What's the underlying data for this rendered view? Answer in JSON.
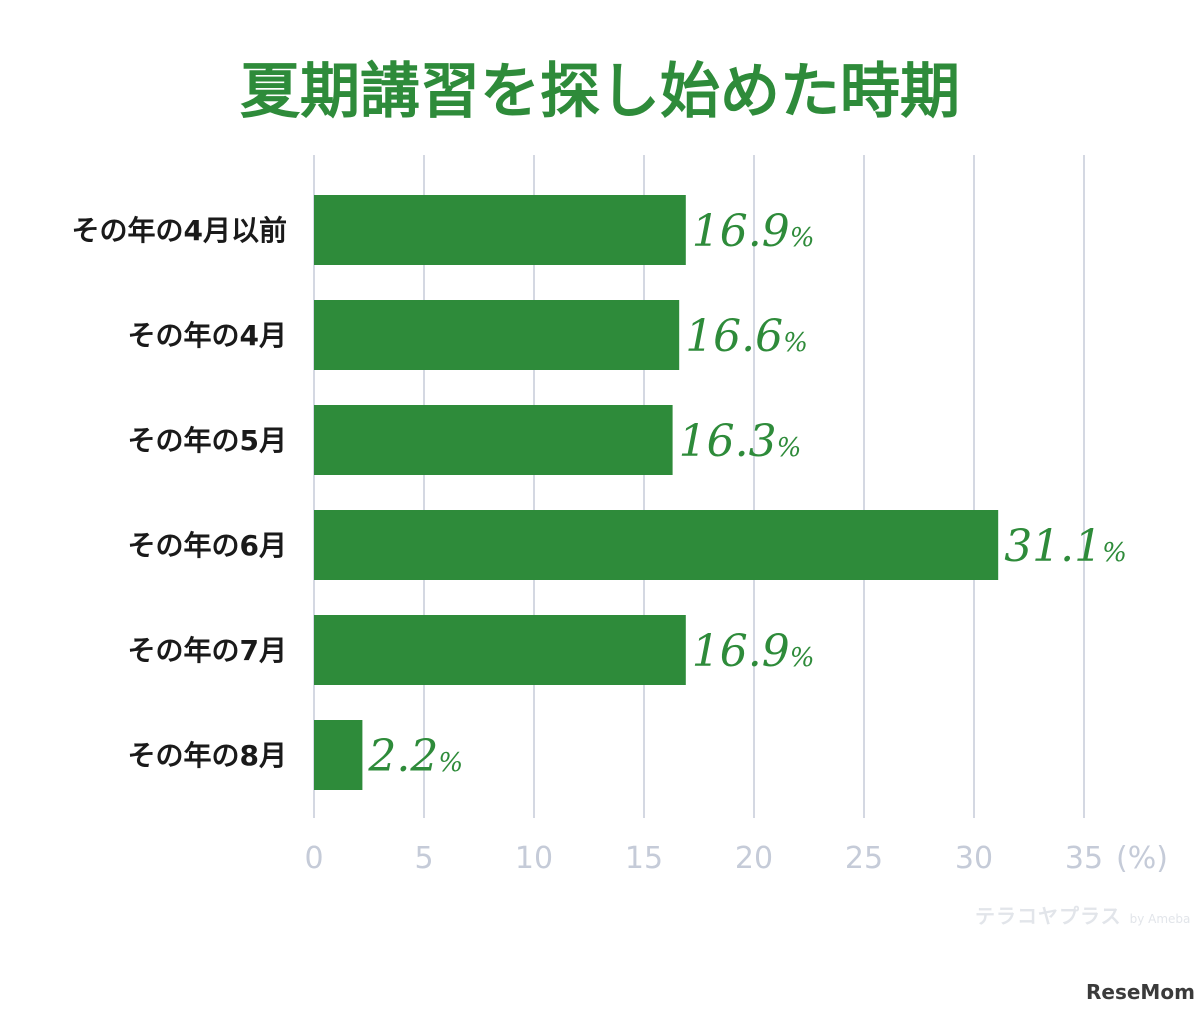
{
  "chart_data": {
    "type": "bar",
    "orientation": "horizontal",
    "title": "夏期講習を探し始めた時期",
    "categories": [
      "その年の4月以前",
      "その年の4月",
      "その年の5月",
      "その年の6月",
      "その年の7月",
      "その年の8月"
    ],
    "values": [
      16.9,
      16.6,
      16.3,
      31.1,
      16.9,
      2.2
    ],
    "value_labels": [
      "16.9",
      "16.6",
      "16.3",
      "31.1",
      "16.9",
      "2.2"
    ],
    "value_suffix": "%",
    "xlim": [
      0,
      35
    ],
    "xticks": [
      0,
      5,
      10,
      15,
      20,
      25,
      30,
      35
    ],
    "x_unit_label": "(%)",
    "grid": "vertical",
    "legend": "none",
    "bar_color": "#2e8b3a",
    "grid_color": "#c5cbd8"
  },
  "watermark": {
    "text": "テラコヤプラス",
    "by": "by Ameba"
  },
  "brand": "ReseMom"
}
